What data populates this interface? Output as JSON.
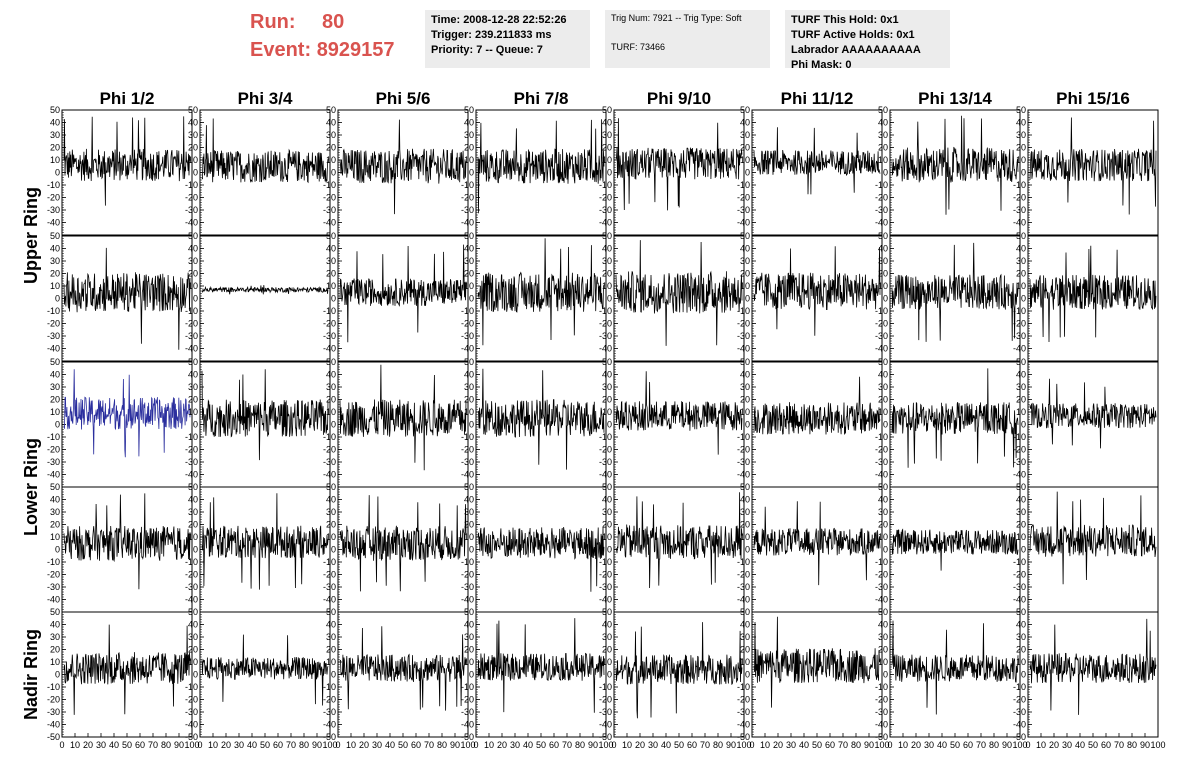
{
  "header": {
    "run_label": "Run:",
    "run_value": "80",
    "event_label": "Event:",
    "event_value": "8929157"
  },
  "time_box": {
    "time": "Time: 2008-12-28 22:52:26",
    "trigger": "Trigger: 239.211833 ms",
    "priority": "Priority: 7 -- Queue: 7"
  },
  "trig_box": {
    "trig": "Trig Num: 7921 -- Trig Type: Soft",
    "turf": "TURF: 73466"
  },
  "turf_box": {
    "this_hold": "TURF This Hold: 0x1",
    "active_holds": "TURF Active Holds: 0x1",
    "labrador": "Labrador AAAAAAAAAA",
    "phi_mask": "Phi Mask: 0"
  },
  "chart_data": {
    "type": "line",
    "columns": [
      "Phi 1/2",
      "Phi 3/4",
      "Phi 5/6",
      "Phi 7/8",
      "Phi 9/10",
      "Phi 11/12",
      "Phi 13/14",
      "Phi 15/16"
    ],
    "rings": [
      {
        "name": "Upper Ring",
        "rows": 2
      },
      {
        "name": "Lower Ring",
        "rows": 2
      },
      {
        "name": "Nadir Ring",
        "rows": 1
      }
    ],
    "ylim": [
      -50,
      50
    ],
    "y_ticks": [
      -40,
      -30,
      -20,
      -10,
      0,
      10,
      20,
      30,
      40,
      50
    ],
    "y_ticks_bottom": [
      -50,
      -40,
      -30,
      -20,
      -10,
      0,
      10,
      20,
      30,
      40,
      50
    ],
    "xlim": [
      0,
      100
    ],
    "x_tick_labels": [
      "0",
      "10",
      "20",
      "30",
      "40",
      "50",
      "60",
      "70",
      "80",
      "90",
      "100"
    ],
    "colors": {
      "trace": "#000000",
      "highlight": "#2b2f9e"
    },
    "panels": [
      {
        "row": 0,
        "col": 0,
        "mean": 6,
        "amp": 13,
        "spike": 40
      },
      {
        "row": 0,
        "col": 1,
        "mean": 5,
        "amp": 13,
        "spike": 40
      },
      {
        "row": 0,
        "col": 2,
        "mean": 5,
        "amp": 14,
        "spike": 40
      },
      {
        "row": 0,
        "col": 3,
        "mean": 5,
        "amp": 14,
        "spike": 40
      },
      {
        "row": 0,
        "col": 4,
        "mean": 7,
        "amp": 13,
        "spike": 40
      },
      {
        "row": 0,
        "col": 5,
        "mean": 8,
        "amp": 10,
        "spike": 30
      },
      {
        "row": 0,
        "col": 6,
        "mean": 6,
        "amp": 14,
        "spike": 40
      },
      {
        "row": 0,
        "col": 7,
        "mean": 6,
        "amp": 13,
        "spike": 40
      },
      {
        "row": 1,
        "col": 0,
        "mean": 5,
        "amp": 16,
        "spike": 46
      },
      {
        "row": 1,
        "col": 1,
        "mean": 7,
        "amp": 2,
        "spike": 4
      },
      {
        "row": 1,
        "col": 2,
        "mean": 5,
        "amp": 11,
        "spike": 40
      },
      {
        "row": 1,
        "col": 3,
        "mean": 5,
        "amp": 16,
        "spike": 44
      },
      {
        "row": 1,
        "col": 4,
        "mean": 5,
        "amp": 17,
        "spike": 46
      },
      {
        "row": 1,
        "col": 5,
        "mean": 6,
        "amp": 15,
        "spike": 40
      },
      {
        "row": 1,
        "col": 6,
        "mean": 5,
        "amp": 14,
        "spike": 40
      },
      {
        "row": 1,
        "col": 7,
        "mean": 5,
        "amp": 14,
        "spike": 40
      },
      {
        "row": 2,
        "col": 0,
        "mean": 9,
        "amp": 13,
        "spike": 36,
        "highlight": true
      },
      {
        "row": 2,
        "col": 1,
        "mean": 5,
        "amp": 15,
        "spike": 40
      },
      {
        "row": 2,
        "col": 2,
        "mean": 5,
        "amp": 15,
        "spike": 45
      },
      {
        "row": 2,
        "col": 3,
        "mean": 5,
        "amp": 15,
        "spike": 44
      },
      {
        "row": 2,
        "col": 4,
        "mean": 7,
        "amp": 12,
        "spike": 36
      },
      {
        "row": 2,
        "col": 5,
        "mean": 5,
        "amp": 13,
        "spike": 40
      },
      {
        "row": 2,
        "col": 6,
        "mean": 5,
        "amp": 13,
        "spike": 40
      },
      {
        "row": 2,
        "col": 7,
        "mean": 7,
        "amp": 10,
        "spike": 30
      },
      {
        "row": 3,
        "col": 0,
        "mean": 5,
        "amp": 14,
        "spike": 40
      },
      {
        "row": 3,
        "col": 1,
        "mean": 6,
        "amp": 13,
        "spike": 40
      },
      {
        "row": 3,
        "col": 2,
        "mean": 5,
        "amp": 14,
        "spike": 40
      },
      {
        "row": 3,
        "col": 3,
        "mean": 5,
        "amp": 13,
        "spike": 40
      },
      {
        "row": 3,
        "col": 4,
        "mean": 6,
        "amp": 14,
        "spike": 40
      },
      {
        "row": 3,
        "col": 5,
        "mean": 6,
        "amp": 11,
        "spike": 36
      },
      {
        "row": 3,
        "col": 6,
        "mean": 6,
        "amp": 10,
        "spike": 28
      },
      {
        "row": 3,
        "col": 7,
        "mean": 7,
        "amp": 13,
        "spike": 40
      },
      {
        "row": 4,
        "col": 0,
        "mean": 5,
        "amp": 13,
        "spike": 40
      },
      {
        "row": 4,
        "col": 1,
        "mean": 5,
        "amp": 9,
        "spike": 30
      },
      {
        "row": 4,
        "col": 2,
        "mean": 5,
        "amp": 11,
        "spike": 34
      },
      {
        "row": 4,
        "col": 3,
        "mean": 6,
        "amp": 11,
        "spike": 40
      },
      {
        "row": 4,
        "col": 4,
        "mean": 4,
        "amp": 12,
        "spike": 40
      },
      {
        "row": 4,
        "col": 5,
        "mean": 7,
        "amp": 14,
        "spike": 40
      },
      {
        "row": 4,
        "col": 6,
        "mean": 5,
        "amp": 11,
        "spike": 40
      },
      {
        "row": 4,
        "col": 7,
        "mean": 5,
        "amp": 12,
        "spike": 40
      }
    ]
  }
}
